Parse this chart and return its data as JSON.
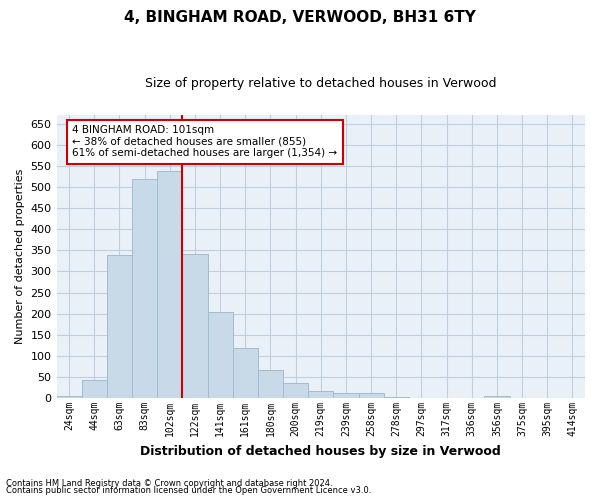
{
  "title": "4, BINGHAM ROAD, VERWOOD, BH31 6TY",
  "subtitle": "Size of property relative to detached houses in Verwood",
  "xlabel": "Distribution of detached houses by size in Verwood",
  "ylabel": "Number of detached properties",
  "footnote1": "Contains HM Land Registry data © Crown copyright and database right 2024.",
  "footnote2": "Contains public sector information licensed under the Open Government Licence v3.0.",
  "bar_labels": [
    "24sqm",
    "44sqm",
    "63sqm",
    "83sqm",
    "102sqm",
    "122sqm",
    "141sqm",
    "161sqm",
    "180sqm",
    "200sqm",
    "219sqm",
    "239sqm",
    "258sqm",
    "278sqm",
    "297sqm",
    "317sqm",
    "336sqm",
    "356sqm",
    "375sqm",
    "395sqm",
    "414sqm"
  ],
  "bar_values": [
    5,
    42,
    340,
    520,
    537,
    342,
    204,
    118,
    67,
    35,
    17,
    13,
    11,
    3,
    1,
    0,
    0,
    4,
    0,
    1,
    0
  ],
  "bar_color": "#c8d9e8",
  "bar_edgecolor": "#a0bcd0",
  "highlight_bar_index": 4,
  "highlight_line_color": "#cc0000",
  "annotation_text": "4 BINGHAM ROAD: 101sqm\n← 38% of detached houses are smaller (855)\n61% of semi-detached houses are larger (1,354) →",
  "annotation_box_color": "white",
  "annotation_box_edgecolor": "#cc0000",
  "ylim": [
    0,
    670
  ],
  "yticks": [
    0,
    50,
    100,
    150,
    200,
    250,
    300,
    350,
    400,
    450,
    500,
    550,
    600,
    650
  ],
  "grid_color": "#c0cfe0",
  "bg_color": "#eaf0f8",
  "title_fontsize": 11,
  "subtitle_fontsize": 9
}
